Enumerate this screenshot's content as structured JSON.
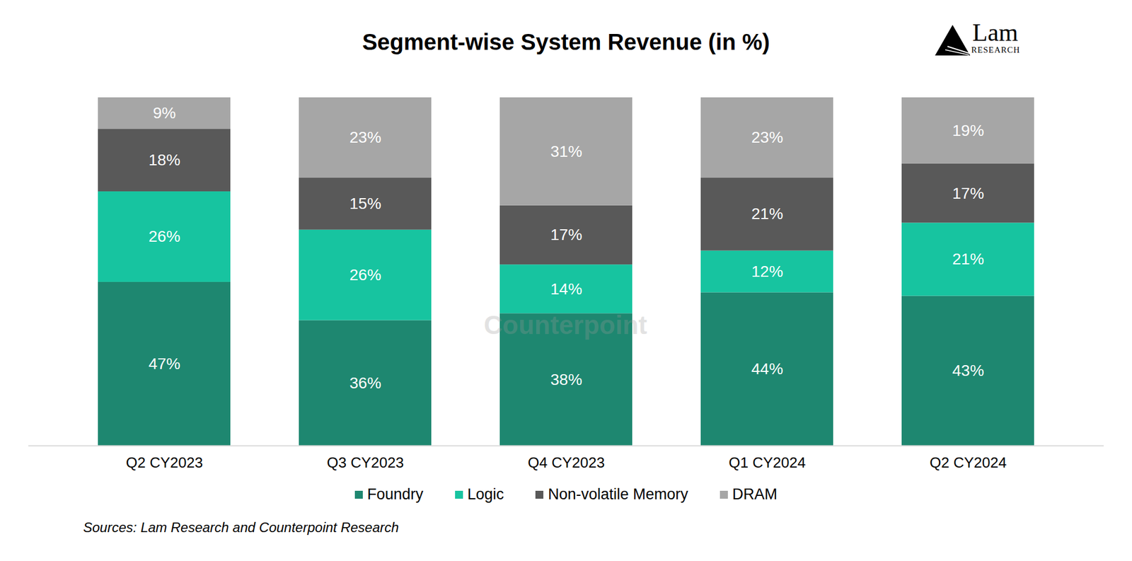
{
  "chart_data": {
    "type": "bar",
    "stacked": true,
    "title": "Segment-wise System Revenue (in %)",
    "categories": [
      "Q2 CY2023",
      "Q3 CY2023",
      "Q4 CY2023",
      "Q1 CY2024",
      "Q2 CY2024"
    ],
    "series": [
      {
        "name": "Foundry",
        "color": "#1e8770",
        "values": [
          47,
          36,
          38,
          44,
          43
        ],
        "value_labels": [
          "47%",
          "36%",
          "38%",
          "44%",
          "43%"
        ]
      },
      {
        "name": "Logic",
        "color": "#17c4a0",
        "values": [
          26,
          26,
          14,
          12,
          21
        ],
        "value_labels": [
          "26%",
          "26%",
          "14%",
          "12%",
          "21%"
        ]
      },
      {
        "name": "Non-volatile Memory",
        "color": "#595959",
        "values": [
          18,
          15,
          17,
          21,
          17
        ],
        "value_labels": [
          "18%",
          "15%",
          "17%",
          "21%",
          "17%"
        ]
      },
      {
        "name": "DRAM",
        "color": "#a6a6a6",
        "values": [
          9,
          23,
          31,
          23,
          19
        ],
        "value_labels": [
          "9%",
          "23%",
          "31%",
          "23%",
          "19%"
        ]
      }
    ],
    "ylim": [
      0,
      100
    ],
    "data_labels": true,
    "tick_labels": "x",
    "legend": "bottom",
    "caption": "Sources: Lam Research and Counterpoint Research",
    "logo": [
      "Lam",
      "RESEARCH"
    ],
    "watermark": "Counterpoint"
  }
}
